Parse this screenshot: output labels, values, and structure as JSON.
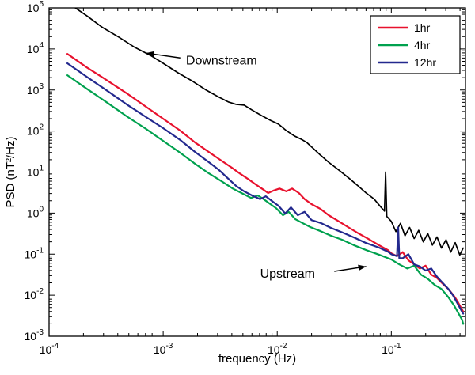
{
  "figure": {
    "background": "#ffffff"
  },
  "chart_data": {
    "type": "line",
    "title": "",
    "xlabel": "frequency (Hz)",
    "ylabel": "PSD (nT²/Hz)",
    "x_scale": "log",
    "y_scale": "log",
    "xlim_log10": [
      -4,
      -0.35
    ],
    "ylim_log10": [
      -3,
      5
    ],
    "x_tick_exponents": [
      -4,
      -3,
      -2,
      -1
    ],
    "y_tick_exponents": [
      -3,
      -2,
      -1,
      0,
      1,
      2,
      3,
      4,
      5
    ],
    "grid": false,
    "axis_color": "#000000",
    "legend": {
      "position": "top-right",
      "entries": [
        {
          "label": "1hr",
          "color": "#e8112d"
        },
        {
          "label": "4hr",
          "color": "#00a14e"
        },
        {
          "label": "12hr",
          "color": "#23298e"
        }
      ]
    },
    "annotations": [
      {
        "text": "Downstream",
        "text_at_log10": [
          -2.8,
          3.62
        ],
        "arrow_from_log10": [
          -2.85,
          3.78
        ],
        "arrow_to_log10": [
          -3.15,
          3.9
        ]
      },
      {
        "text": "Upstream",
        "text_at_log10": [
          -2.15,
          -1.57
        ],
        "arrow_from_log10": [
          -1.5,
          -1.42
        ],
        "arrow_to_log10": [
          -1.22,
          -1.3
        ]
      }
    ],
    "series": [
      {
        "name": "Downstream",
        "color": "#000000",
        "width": 1.7,
        "points_log10": [
          [
            -3.77,
            5.0
          ],
          [
            -3.67,
            4.81
          ],
          [
            -3.53,
            4.52
          ],
          [
            -3.39,
            4.29
          ],
          [
            -3.25,
            4.04
          ],
          [
            -3.11,
            3.84
          ],
          [
            -3.0,
            3.65
          ],
          [
            -2.87,
            3.42
          ],
          [
            -2.74,
            3.21
          ],
          [
            -2.63,
            3.01
          ],
          [
            -2.52,
            2.84
          ],
          [
            -2.43,
            2.71
          ],
          [
            -2.36,
            2.65
          ],
          [
            -2.29,
            2.63
          ],
          [
            -2.22,
            2.51
          ],
          [
            -2.14,
            2.38
          ],
          [
            -2.06,
            2.26
          ],
          [
            -1.99,
            2.17
          ],
          [
            -1.92,
            2.01
          ],
          [
            -1.85,
            1.88
          ],
          [
            -1.79,
            1.8
          ],
          [
            -1.74,
            1.72
          ],
          [
            -1.69,
            1.59
          ],
          [
            -1.62,
            1.41
          ],
          [
            -1.55,
            1.24
          ],
          [
            -1.46,
            1.05
          ],
          [
            -1.38,
            0.87
          ],
          [
            -1.29,
            0.66
          ],
          [
            -1.22,
            0.49
          ],
          [
            -1.15,
            0.34
          ],
          [
            -1.09,
            0.14
          ],
          [
            -1.06,
            0.05
          ],
          [
            -1.05,
            1.0
          ],
          [
            -1.04,
            -0.08
          ],
          [
            -1.0,
            -0.2
          ],
          [
            -0.96,
            -0.45
          ],
          [
            -0.92,
            -0.25
          ],
          [
            -0.88,
            -0.55
          ],
          [
            -0.84,
            -0.35
          ],
          [
            -0.8,
            -0.62
          ],
          [
            -0.76,
            -0.42
          ],
          [
            -0.72,
            -0.7
          ],
          [
            -0.68,
            -0.5
          ],
          [
            -0.64,
            -0.78
          ],
          [
            -0.6,
            -0.58
          ],
          [
            -0.56,
            -0.85
          ],
          [
            -0.52,
            -0.65
          ],
          [
            -0.48,
            -0.95
          ],
          [
            -0.44,
            -0.72
          ],
          [
            -0.4,
            -1.02
          ],
          [
            -0.37,
            -0.85
          ]
        ]
      },
      {
        "name": "1hr",
        "color": "#e8112d",
        "width": 2.2,
        "points_log10": [
          [
            -3.84,
            3.88
          ],
          [
            -3.67,
            3.55
          ],
          [
            -3.49,
            3.23
          ],
          [
            -3.32,
            2.92
          ],
          [
            -3.15,
            2.59
          ],
          [
            -3.0,
            2.3
          ],
          [
            -2.85,
            2.01
          ],
          [
            -2.72,
            1.72
          ],
          [
            -2.6,
            1.49
          ],
          [
            -2.49,
            1.28
          ],
          [
            -2.4,
            1.11
          ],
          [
            -2.32,
            0.95
          ],
          [
            -2.25,
            0.82
          ],
          [
            -2.18,
            0.68
          ],
          [
            -2.12,
            0.57
          ],
          [
            -2.08,
            0.49
          ],
          [
            -2.03,
            0.55
          ],
          [
            -1.98,
            0.6
          ],
          [
            -1.92,
            0.53
          ],
          [
            -1.87,
            0.6
          ],
          [
            -1.81,
            0.49
          ],
          [
            -1.76,
            0.34
          ],
          [
            -1.7,
            0.22
          ],
          [
            -1.62,
            0.1
          ],
          [
            -1.55,
            -0.05
          ],
          [
            -1.46,
            -0.2
          ],
          [
            -1.38,
            -0.34
          ],
          [
            -1.29,
            -0.49
          ],
          [
            -1.2,
            -0.63
          ],
          [
            -1.11,
            -0.78
          ],
          [
            -1.03,
            -0.9
          ],
          [
            -1.0,
            -0.98
          ],
          [
            -0.95,
            -1.05
          ],
          [
            -0.9,
            -0.95
          ],
          [
            -0.85,
            -1.15
          ],
          [
            -0.8,
            -1.25
          ],
          [
            -0.75,
            -1.35
          ],
          [
            -0.7,
            -1.28
          ],
          [
            -0.65,
            -1.5
          ],
          [
            -0.6,
            -1.58
          ],
          [
            -0.55,
            -1.72
          ],
          [
            -0.5,
            -1.85
          ],
          [
            -0.45,
            -2.02
          ],
          [
            -0.42,
            -2.15
          ],
          [
            -0.39,
            -2.3
          ],
          [
            -0.37,
            -2.4
          ]
        ]
      },
      {
        "name": "4hr",
        "color": "#00a14e",
        "width": 2.2,
        "points_log10": [
          [
            -3.84,
            3.36
          ],
          [
            -3.67,
            3.03
          ],
          [
            -3.49,
            2.69
          ],
          [
            -3.32,
            2.36
          ],
          [
            -3.15,
            2.05
          ],
          [
            -3.0,
            1.76
          ],
          [
            -2.85,
            1.47
          ],
          [
            -2.72,
            1.2
          ],
          [
            -2.6,
            0.97
          ],
          [
            -2.49,
            0.78
          ],
          [
            -2.39,
            0.6
          ],
          [
            -2.3,
            0.47
          ],
          [
            -2.23,
            0.37
          ],
          [
            -2.17,
            0.43
          ],
          [
            -2.12,
            0.34
          ],
          [
            -2.06,
            0.22
          ],
          [
            -2.01,
            0.12
          ],
          [
            -1.95,
            -0.05
          ],
          [
            -1.9,
            0.03
          ],
          [
            -1.84,
            -0.15
          ],
          [
            -1.78,
            -0.24
          ],
          [
            -1.71,
            -0.34
          ],
          [
            -1.62,
            -0.44
          ],
          [
            -1.53,
            -0.55
          ],
          [
            -1.43,
            -0.65
          ],
          [
            -1.33,
            -0.78
          ],
          [
            -1.22,
            -0.9
          ],
          [
            -1.11,
            -1.01
          ],
          [
            -1.0,
            -1.13
          ],
          [
            -0.93,
            -1.25
          ],
          [
            -0.86,
            -1.35
          ],
          [
            -0.8,
            -1.28
          ],
          [
            -0.74,
            -1.5
          ],
          [
            -0.68,
            -1.6
          ],
          [
            -0.62,
            -1.75
          ],
          [
            -0.56,
            -1.85
          ],
          [
            -0.5,
            -2.05
          ],
          [
            -0.45,
            -2.25
          ],
          [
            -0.41,
            -2.45
          ],
          [
            -0.38,
            -2.6
          ],
          [
            -0.37,
            -2.7
          ]
        ]
      },
      {
        "name": "12hr",
        "color": "#23298e",
        "width": 2.2,
        "points_log10": [
          [
            -3.84,
            3.65
          ],
          [
            -3.67,
            3.32
          ],
          [
            -3.49,
            2.98
          ],
          [
            -3.32,
            2.65
          ],
          [
            -3.15,
            2.34
          ],
          [
            -3.0,
            2.07
          ],
          [
            -2.85,
            1.78
          ],
          [
            -2.72,
            1.49
          ],
          [
            -2.6,
            1.24
          ],
          [
            -2.51,
            1.05
          ],
          [
            -2.43,
            0.84
          ],
          [
            -2.36,
            0.66
          ],
          [
            -2.29,
            0.53
          ],
          [
            -2.22,
            0.43
          ],
          [
            -2.15,
            0.34
          ],
          [
            -2.1,
            0.41
          ],
          [
            -2.04,
            0.28
          ],
          [
            -1.99,
            0.18
          ],
          [
            -1.93,
            -0.01
          ],
          [
            -1.88,
            0.14
          ],
          [
            -1.82,
            -0.05
          ],
          [
            -1.76,
            0.03
          ],
          [
            -1.7,
            -0.17
          ],
          [
            -1.62,
            -0.24
          ],
          [
            -1.53,
            -0.36
          ],
          [
            -1.43,
            -0.47
          ],
          [
            -1.33,
            -0.59
          ],
          [
            -1.22,
            -0.73
          ],
          [
            -1.11,
            -0.84
          ],
          [
            -1.03,
            -0.94
          ],
          [
            -1.0,
            -1.0
          ],
          [
            -0.95,
            -1.05
          ],
          [
            -0.94,
            -0.35
          ],
          [
            -0.93,
            -1.1
          ],
          [
            -0.9,
            -1.1
          ],
          [
            -0.85,
            -1.0
          ],
          [
            -0.8,
            -1.25
          ],
          [
            -0.75,
            -1.3
          ],
          [
            -0.7,
            -1.4
          ],
          [
            -0.65,
            -1.35
          ],
          [
            -0.6,
            -1.55
          ],
          [
            -0.55,
            -1.7
          ],
          [
            -0.5,
            -1.85
          ],
          [
            -0.46,
            -2.0
          ],
          [
            -0.42,
            -2.2
          ],
          [
            -0.39,
            -2.35
          ],
          [
            -0.37,
            -2.45
          ]
        ]
      }
    ]
  }
}
